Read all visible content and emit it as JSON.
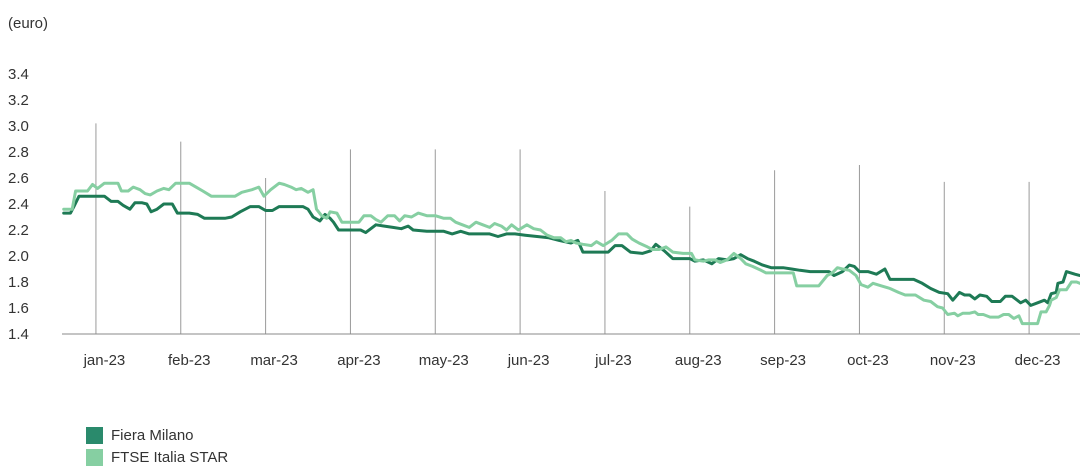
{
  "chart_data": {
    "type": "line",
    "unit_label": "(euro)",
    "y_ticks": [
      "1.4",
      "1.6",
      "1.8",
      "2.0",
      "2.2",
      "2.4",
      "2.6",
      "2.8",
      "3.0",
      "3.2",
      "3.4"
    ],
    "ylim": [
      1.4,
      3.4
    ],
    "x_range": [
      0,
      12
    ],
    "month_labels": [
      "jan-23",
      "feb-23",
      "mar-23",
      "apr-23",
      "may-23",
      "jun-23",
      "jul-23",
      "aug-23",
      "sep-23",
      "oct-23",
      "nov-23",
      "dec-23"
    ],
    "month_positions": [
      0.5,
      1.5,
      2.5,
      3.5,
      4.5,
      5.5,
      6.5,
      7.5,
      8.5,
      9.5,
      10.5,
      11.5
    ],
    "gridlines_x": [
      0.4,
      1.4,
      2.4,
      3.4,
      4.4,
      5.4,
      6.4,
      7.4,
      8.4,
      9.4,
      10.4,
      11.4
    ],
    "gridline_tops": [
      3.02,
      2.88,
      2.6,
      2.82,
      2.82,
      2.82,
      2.5,
      2.38,
      2.66,
      2.7,
      2.57,
      2.57
    ],
    "grid": "vertical",
    "legend_position": "bottom-left",
    "series": [
      {
        "name": "Fiera Milano",
        "color": "#1e7a55",
        "points": [
          [
            0.02,
            2.33
          ],
          [
            0.1,
            2.33
          ],
          [
            0.14,
            2.38
          ],
          [
            0.2,
            2.46
          ],
          [
            0.35,
            2.46
          ],
          [
            0.5,
            2.46
          ],
          [
            0.58,
            2.42
          ],
          [
            0.66,
            2.42
          ],
          [
            0.72,
            2.39
          ],
          [
            0.8,
            2.36
          ],
          [
            0.86,
            2.41
          ],
          [
            0.94,
            2.41
          ],
          [
            1.0,
            2.4
          ],
          [
            1.05,
            2.34
          ],
          [
            1.12,
            2.36
          ],
          [
            1.2,
            2.4
          ],
          [
            1.3,
            2.4
          ],
          [
            1.36,
            2.33
          ],
          [
            1.5,
            2.33
          ],
          [
            1.6,
            2.32
          ],
          [
            1.68,
            2.29
          ],
          [
            1.8,
            2.29
          ],
          [
            1.92,
            2.29
          ],
          [
            2.0,
            2.3
          ],
          [
            2.1,
            2.34
          ],
          [
            2.22,
            2.38
          ],
          [
            2.32,
            2.38
          ],
          [
            2.4,
            2.35
          ],
          [
            2.48,
            2.35
          ],
          [
            2.56,
            2.38
          ],
          [
            2.7,
            2.38
          ],
          [
            2.84,
            2.38
          ],
          [
            2.9,
            2.36
          ],
          [
            2.96,
            2.3
          ],
          [
            3.04,
            2.27
          ],
          [
            3.1,
            2.32
          ],
          [
            3.16,
            2.29
          ],
          [
            3.2,
            2.26
          ],
          [
            3.26,
            2.2
          ],
          [
            3.4,
            2.2
          ],
          [
            3.52,
            2.2
          ],
          [
            3.58,
            2.18
          ],
          [
            3.64,
            2.21
          ],
          [
            3.7,
            2.24
          ],
          [
            3.8,
            2.23
          ],
          [
            3.9,
            2.22
          ],
          [
            4.0,
            2.21
          ],
          [
            4.08,
            2.23
          ],
          [
            4.14,
            2.2
          ],
          [
            4.3,
            2.19
          ],
          [
            4.5,
            2.19
          ],
          [
            4.6,
            2.17
          ],
          [
            4.7,
            2.19
          ],
          [
            4.8,
            2.17
          ],
          [
            4.9,
            2.17
          ],
          [
            5.04,
            2.17
          ],
          [
            5.14,
            2.15
          ],
          [
            5.24,
            2.17
          ],
          [
            5.34,
            2.17
          ],
          [
            5.46,
            2.16
          ],
          [
            5.6,
            2.15
          ],
          [
            5.74,
            2.14
          ],
          [
            5.86,
            2.12
          ],
          [
            6.0,
            2.1
          ],
          [
            6.08,
            2.12
          ],
          [
            6.14,
            2.03
          ],
          [
            6.3,
            2.03
          ],
          [
            6.44,
            2.03
          ],
          [
            6.52,
            2.08
          ],
          [
            6.6,
            2.08
          ],
          [
            6.7,
            2.03
          ],
          [
            6.84,
            2.02
          ],
          [
            6.94,
            2.04
          ],
          [
            7.0,
            2.09
          ],
          [
            7.1,
            2.04
          ],
          [
            7.2,
            1.98
          ],
          [
            7.3,
            1.98
          ],
          [
            7.4,
            1.98
          ],
          [
            7.46,
            1.96
          ],
          [
            7.56,
            1.97
          ],
          [
            7.66,
            1.94
          ],
          [
            7.74,
            1.98
          ],
          [
            7.84,
            1.97
          ],
          [
            7.92,
            1.98
          ],
          [
            8.0,
            2.01
          ],
          [
            8.08,
            1.98
          ],
          [
            8.16,
            1.96
          ],
          [
            8.26,
            1.93
          ],
          [
            8.36,
            1.91
          ],
          [
            8.5,
            1.91
          ],
          [
            8.6,
            1.9
          ],
          [
            8.7,
            1.89
          ],
          [
            8.82,
            1.88
          ],
          [
            8.94,
            1.88
          ],
          [
            9.04,
            1.88
          ],
          [
            9.1,
            1.85
          ],
          [
            9.2,
            1.88
          ],
          [
            9.28,
            1.93
          ],
          [
            9.34,
            1.92
          ],
          [
            9.4,
            1.88
          ],
          [
            9.5,
            1.88
          ],
          [
            9.6,
            1.86
          ],
          [
            9.7,
            1.9
          ],
          [
            9.76,
            1.82
          ],
          [
            9.9,
            1.82
          ],
          [
            10.04,
            1.82
          ],
          [
            10.14,
            1.79
          ],
          [
            10.24,
            1.75
          ],
          [
            10.34,
            1.72
          ],
          [
            10.44,
            1.71
          ],
          [
            10.5,
            1.66
          ],
          [
            10.58,
            1.72
          ],
          [
            10.64,
            1.7
          ],
          [
            10.7,
            1.7
          ],
          [
            10.76,
            1.67
          ],
          [
            10.82,
            1.7
          ],
          [
            10.9,
            1.69
          ],
          [
            10.96,
            1.65
          ],
          [
            11.06,
            1.65
          ],
          [
            11.12,
            1.69
          ],
          [
            11.2,
            1.69
          ],
          [
            11.3,
            1.64
          ],
          [
            11.36,
            1.66
          ],
          [
            11.42,
            1.62
          ],
          [
            11.5,
            1.64
          ],
          [
            11.58,
            1.66
          ],
          [
            11.62,
            1.64
          ],
          [
            11.66,
            1.71
          ],
          [
            11.72,
            1.72
          ],
          [
            11.74,
            1.79
          ],
          [
            11.8,
            1.8
          ],
          [
            11.84,
            1.88
          ],
          [
            11.94,
            1.86
          ],
          [
            12.0,
            1.85
          ]
        ]
      },
      {
        "name": "FTSE Italia STAR",
        "color": "#86cfa2",
        "points": [
          [
            0.02,
            2.36
          ],
          [
            0.12,
            2.36
          ],
          [
            0.16,
            2.5
          ],
          [
            0.3,
            2.5
          ],
          [
            0.36,
            2.55
          ],
          [
            0.42,
            2.52
          ],
          [
            0.5,
            2.56
          ],
          [
            0.66,
            2.56
          ],
          [
            0.7,
            2.5
          ],
          [
            0.78,
            2.5
          ],
          [
            0.84,
            2.53
          ],
          [
            0.92,
            2.51
          ],
          [
            0.98,
            2.48
          ],
          [
            1.04,
            2.47
          ],
          [
            1.12,
            2.5
          ],
          [
            1.2,
            2.52
          ],
          [
            1.26,
            2.51
          ],
          [
            1.34,
            2.56
          ],
          [
            1.5,
            2.56
          ],
          [
            1.58,
            2.53
          ],
          [
            1.66,
            2.5
          ],
          [
            1.76,
            2.46
          ],
          [
            1.9,
            2.46
          ],
          [
            2.04,
            2.46
          ],
          [
            2.12,
            2.49
          ],
          [
            2.24,
            2.51
          ],
          [
            2.32,
            2.53
          ],
          [
            2.38,
            2.46
          ],
          [
            2.46,
            2.51
          ],
          [
            2.56,
            2.56
          ],
          [
            2.62,
            2.55
          ],
          [
            2.7,
            2.53
          ],
          [
            2.76,
            2.51
          ],
          [
            2.82,
            2.52
          ],
          [
            2.9,
            2.49
          ],
          [
            2.96,
            2.51
          ],
          [
            3.0,
            2.36
          ],
          [
            3.06,
            2.31
          ],
          [
            3.12,
            2.29
          ],
          [
            3.16,
            2.34
          ],
          [
            3.24,
            2.33
          ],
          [
            3.3,
            2.26
          ],
          [
            3.4,
            2.26
          ],
          [
            3.5,
            2.26
          ],
          [
            3.56,
            2.31
          ],
          [
            3.64,
            2.31
          ],
          [
            3.7,
            2.28
          ],
          [
            3.76,
            2.26
          ],
          [
            3.84,
            2.31
          ],
          [
            3.92,
            2.31
          ],
          [
            3.98,
            2.27
          ],
          [
            4.04,
            2.31
          ],
          [
            4.12,
            2.3
          ],
          [
            4.2,
            2.33
          ],
          [
            4.3,
            2.31
          ],
          [
            4.4,
            2.31
          ],
          [
            4.5,
            2.29
          ],
          [
            4.58,
            2.29
          ],
          [
            4.64,
            2.26
          ],
          [
            4.72,
            2.24
          ],
          [
            4.8,
            2.22
          ],
          [
            4.88,
            2.26
          ],
          [
            4.96,
            2.24
          ],
          [
            5.04,
            2.22
          ],
          [
            5.1,
            2.25
          ],
          [
            5.18,
            2.23
          ],
          [
            5.24,
            2.2
          ],
          [
            5.3,
            2.24
          ],
          [
            5.38,
            2.2
          ],
          [
            5.48,
            2.24
          ],
          [
            5.56,
            2.21
          ],
          [
            5.64,
            2.2
          ],
          [
            5.72,
            2.16
          ],
          [
            5.8,
            2.14
          ],
          [
            5.88,
            2.14
          ],
          [
            5.94,
            2.11
          ],
          [
            6.0,
            2.12
          ],
          [
            6.06,
            2.1
          ],
          [
            6.14,
            2.09
          ],
          [
            6.24,
            2.08
          ],
          [
            6.3,
            2.11
          ],
          [
            6.38,
            2.08
          ],
          [
            6.48,
            2.12
          ],
          [
            6.56,
            2.17
          ],
          [
            6.66,
            2.17
          ],
          [
            6.72,
            2.13
          ],
          [
            6.8,
            2.1
          ],
          [
            6.9,
            2.07
          ],
          [
            6.96,
            2.05
          ],
          [
            7.04,
            2.05
          ],
          [
            7.12,
            2.07
          ],
          [
            7.2,
            2.03
          ],
          [
            7.32,
            2.02
          ],
          [
            7.42,
            2.02
          ],
          [
            7.46,
            1.97
          ],
          [
            7.56,
            1.96
          ],
          [
            7.62,
            1.97
          ],
          [
            7.7,
            1.97
          ],
          [
            7.76,
            1.95
          ],
          [
            7.84,
            1.97
          ],
          [
            7.92,
            2.02
          ],
          [
            8.0,
            1.98
          ],
          [
            8.06,
            1.94
          ],
          [
            8.14,
            1.92
          ],
          [
            8.24,
            1.89
          ],
          [
            8.3,
            1.87
          ],
          [
            8.44,
            1.87
          ],
          [
            8.56,
            1.87
          ],
          [
            8.62,
            1.87
          ],
          [
            8.66,
            1.77
          ],
          [
            8.8,
            1.77
          ],
          [
            8.92,
            1.77
          ],
          [
            9.02,
            1.85
          ],
          [
            9.08,
            1.87
          ],
          [
            9.14,
            1.91
          ],
          [
            9.2,
            1.9
          ],
          [
            9.28,
            1.89
          ],
          [
            9.36,
            1.85
          ],
          [
            9.42,
            1.78
          ],
          [
            9.5,
            1.76
          ],
          [
            9.56,
            1.79
          ],
          [
            9.66,
            1.77
          ],
          [
            9.76,
            1.75
          ],
          [
            9.86,
            1.72
          ],
          [
            9.94,
            1.7
          ],
          [
            10.06,
            1.7
          ],
          [
            10.16,
            1.66
          ],
          [
            10.24,
            1.65
          ],
          [
            10.32,
            1.61
          ],
          [
            10.38,
            1.6
          ],
          [
            10.44,
            1.55
          ],
          [
            10.52,
            1.56
          ],
          [
            10.56,
            1.54
          ],
          [
            10.62,
            1.56
          ],
          [
            10.7,
            1.56
          ],
          [
            10.76,
            1.57
          ],
          [
            10.8,
            1.55
          ],
          [
            10.86,
            1.55
          ],
          [
            10.94,
            1.53
          ],
          [
            11.04,
            1.53
          ],
          [
            11.1,
            1.55
          ],
          [
            11.16,
            1.55
          ],
          [
            11.22,
            1.52
          ],
          [
            11.28,
            1.54
          ],
          [
            11.32,
            1.48
          ],
          [
            11.44,
            1.48
          ],
          [
            11.5,
            1.48
          ],
          [
            11.54,
            1.57
          ],
          [
            11.6,
            1.57
          ],
          [
            11.64,
            1.62
          ],
          [
            11.66,
            1.66
          ],
          [
            11.72,
            1.68
          ],
          [
            11.76,
            1.74
          ],
          [
            11.84,
            1.74
          ],
          [
            11.9,
            1.8
          ],
          [
            11.96,
            1.8
          ],
          [
            12.0,
            1.79
          ]
        ]
      }
    ]
  },
  "legend": {
    "items": [
      {
        "label": "Fiera Milano",
        "color": "#2a8a6c"
      },
      {
        "label": "FTSE Italia STAR",
        "color": "#86cfa2"
      }
    ]
  }
}
